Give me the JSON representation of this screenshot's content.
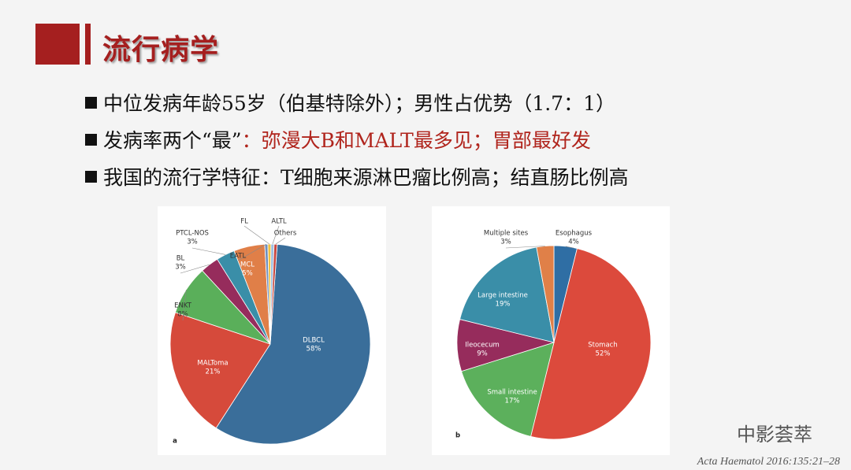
{
  "header": {
    "title": "流行病学"
  },
  "bullets": [
    [
      "中位发病年龄55岁（伯基特除外）；男性占优势（1.7：1）"
    ],
    [
      "发病率两个“最”",
      "：弥漫大B和MALT最多见；胃部最好发"
    ],
    [
      "我国的流行学特征：T细胞来源淋巴瘤比例高；结直肠比例高"
    ]
  ],
  "chart_data": [
    {
      "type": "pie",
      "panel_label": "a",
      "categories": [
        "DLBCL",
        "MALToma",
        "ENKT",
        "BL",
        "PTCL-NOS",
        "MCL",
        "EATL",
        "FL",
        "ALTL",
        "Others"
      ],
      "values": [
        58,
        21,
        8,
        3,
        3,
        5,
        0.5,
        0.5,
        0.5,
        0.5
      ],
      "value_labels": [
        "58%",
        "21%",
        "8%",
        "3%",
        "3%",
        "5%",
        null,
        null,
        null,
        null
      ],
      "colors": [
        "#3a6e9a",
        "#d64a3b",
        "#5aaf5a",
        "#962c5c",
        "#3a8ea8",
        "#e07f48",
        "#6f8fbf",
        "#f0c040",
        "#9dbfe0",
        "#c8463e"
      ]
    },
    {
      "type": "pie",
      "panel_label": "b",
      "categories": [
        "Esophagus",
        "Stomach",
        "Small intestine",
        "Ileocecum",
        "Large intestine",
        "Multiple sites"
      ],
      "values": [
        4,
        52,
        17,
        9,
        19,
        3
      ],
      "value_labels": [
        "4%",
        "52%",
        "17%",
        "9%",
        "19%",
        "3%"
      ],
      "colors": [
        "#2f6ea4",
        "#dc4a3c",
        "#5cb05c",
        "#962c5c",
        "#3a8ea8",
        "#e08048"
      ]
    }
  ],
  "watermark": "中影荟萃",
  "citation": "Acta Haematol 2016:135:21–28"
}
